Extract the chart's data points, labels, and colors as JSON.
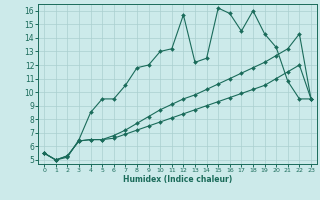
{
  "xlabel": "Humidex (Indice chaleur)",
  "background_color": "#cceaea",
  "grid_color": "#aacfcf",
  "line_color": "#1a6b5a",
  "xlim": [
    -0.5,
    23.5
  ],
  "ylim": [
    4.7,
    16.5
  ],
  "yticks": [
    5,
    6,
    7,
    8,
    9,
    10,
    11,
    12,
    13,
    14,
    15,
    16
  ],
  "xticks": [
    0,
    1,
    2,
    3,
    4,
    5,
    6,
    7,
    8,
    9,
    10,
    11,
    12,
    13,
    14,
    15,
    16,
    17,
    18,
    19,
    20,
    21,
    22,
    23
  ],
  "series1_x": [
    0,
    1,
    2,
    3,
    4,
    5,
    6,
    7,
    8,
    9,
    10,
    11,
    12,
    13,
    14,
    15,
    16,
    17,
    18,
    19,
    20,
    21,
    22,
    23
  ],
  "series1_y": [
    5.5,
    5.0,
    5.2,
    6.5,
    8.5,
    9.5,
    9.5,
    10.5,
    11.8,
    12.0,
    13.0,
    13.2,
    15.7,
    12.2,
    12.5,
    16.2,
    15.8,
    14.5,
    16.0,
    14.3,
    13.3,
    10.8,
    9.5,
    9.5
  ],
  "series2_x": [
    0,
    1,
    2,
    3,
    4,
    5,
    6,
    7,
    8,
    9,
    10,
    11,
    12,
    13,
    14,
    15,
    16,
    17,
    18,
    19,
    20,
    21,
    22,
    23
  ],
  "series2_y": [
    5.5,
    5.0,
    5.3,
    6.4,
    6.5,
    6.5,
    6.8,
    7.2,
    7.7,
    8.2,
    8.7,
    9.1,
    9.5,
    9.8,
    10.2,
    10.6,
    11.0,
    11.4,
    11.8,
    12.2,
    12.7,
    13.2,
    14.3,
    9.5
  ],
  "series3_x": [
    0,
    1,
    2,
    3,
    4,
    5,
    6,
    7,
    8,
    9,
    10,
    11,
    12,
    13,
    14,
    15,
    16,
    17,
    18,
    19,
    20,
    21,
    22,
    23
  ],
  "series3_y": [
    5.5,
    5.0,
    5.3,
    6.4,
    6.5,
    6.5,
    6.6,
    6.9,
    7.2,
    7.5,
    7.8,
    8.1,
    8.4,
    8.7,
    9.0,
    9.3,
    9.6,
    9.9,
    10.2,
    10.5,
    11.0,
    11.5,
    12.0,
    9.5
  ]
}
